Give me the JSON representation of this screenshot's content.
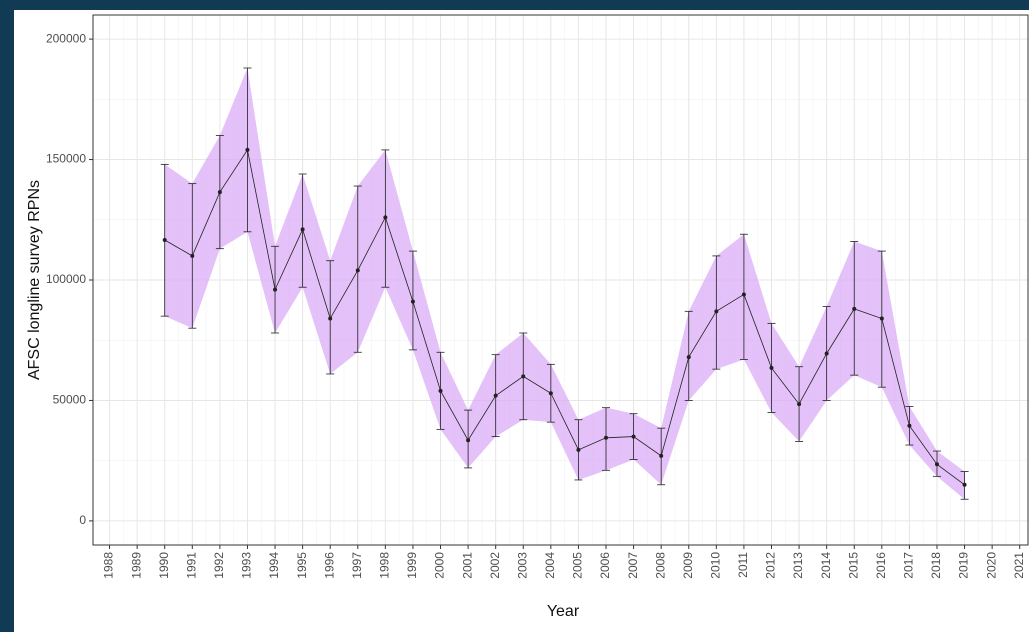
{
  "chart_data": {
    "type": "line",
    "x_label": "Year",
    "y_label": "AFSC longline survey RPNs",
    "x": [
      1990,
      1991,
      1992,
      1993,
      1994,
      1995,
      1996,
      1997,
      1998,
      1999,
      2000,
      2001,
      2002,
      2003,
      2004,
      2005,
      2006,
      2007,
      2008,
      2009,
      2010,
      2011,
      2012,
      2013,
      2014,
      2015,
      2016,
      2017,
      2018,
      2019
    ],
    "values": [
      116600,
      110000,
      136500,
      154000,
      96000,
      121000,
      84000,
      104000,
      126000,
      91000,
      54000,
      33500,
      52000,
      60000,
      53000,
      29500,
      34500,
      35000,
      27000,
      68000,
      87000,
      94000,
      63500,
      48500,
      69500,
      88000,
      84000,
      39500,
      23500,
      15000
    ],
    "lower": [
      85000,
      80000,
      113000,
      120000,
      78000,
      97000,
      61000,
      70000,
      97000,
      71000,
      38000,
      22000,
      35000,
      42000,
      41000,
      17000,
      21000,
      25500,
      15000,
      50000,
      63000,
      67000,
      45000,
      33000,
      50000,
      60500,
      55500,
      31500,
      18500,
      9000
    ],
    "upper": [
      148000,
      140000,
      160000,
      188000,
      114000,
      144000,
      108000,
      139000,
      154000,
      112000,
      70000,
      46000,
      69000,
      78000,
      65000,
      42000,
      47000,
      44500,
      38500,
      87000,
      110000,
      119000,
      82000,
      64000,
      89000,
      116000,
      112000,
      47500,
      29000,
      20500
    ],
    "color": "#222222",
    "band_color": "#d9a6f7",
    "xlim": [
      1987.4,
      2021.3
    ],
    "xticks": [
      1988,
      1989,
      1990,
      1991,
      1992,
      1993,
      1994,
      1995,
      1996,
      1997,
      1998,
      1999,
      2000,
      2001,
      2002,
      2003,
      2004,
      2005,
      2006,
      2007,
      2008,
      2009,
      2010,
      2011,
      2012,
      2013,
      2014,
      2015,
      2016,
      2017,
      2018,
      2019,
      2020,
      2021
    ],
    "ylim": [
      -10000,
      210000
    ],
    "yticks": [
      0,
      50000,
      100000,
      150000,
      200000
    ],
    "grid": true
  }
}
